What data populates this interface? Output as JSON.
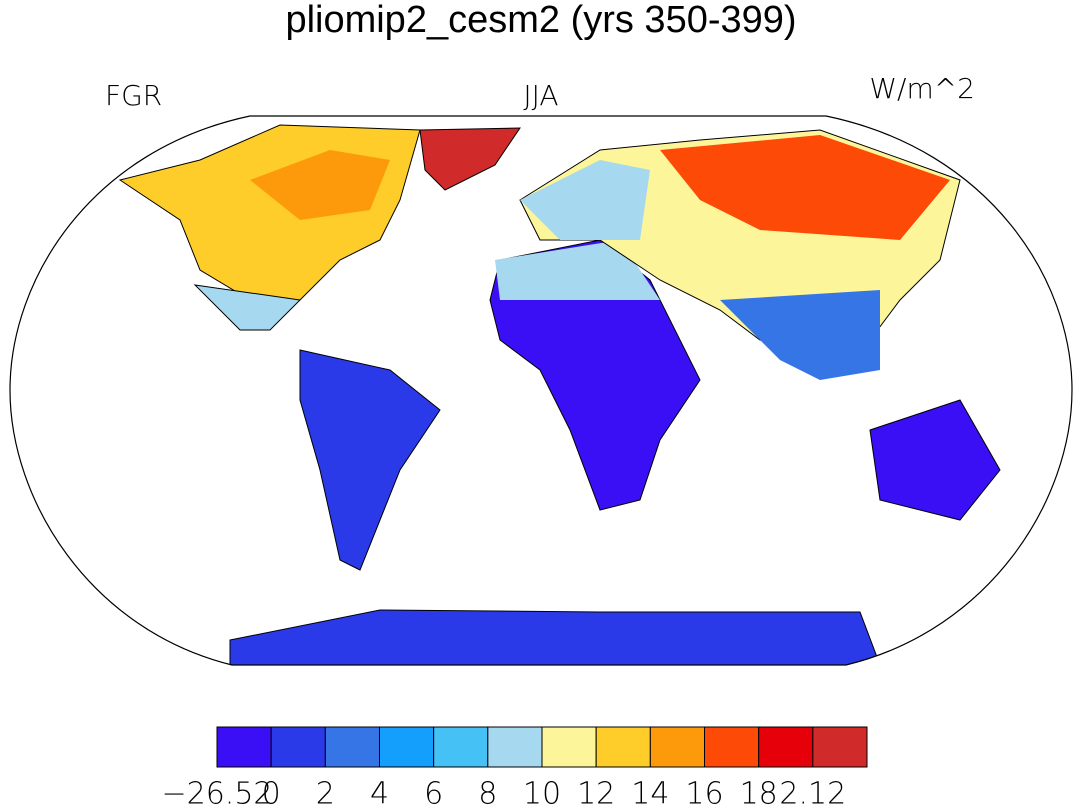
{
  "map": {
    "title": "pliomip2_cesm2 (yrs 350-399)",
    "left_label": "FGR",
    "center_label": "JJA",
    "right_label": "W/m^2",
    "colorbar": {
      "colors": [
        "#3a0ff5",
        "#2a3ae8",
        "#3575e6",
        "#149ffc",
        "#45c1f5",
        "#a6d8f0",
        "#fdf59a",
        "#fecd2a",
        "#fd9a0c",
        "#fd4a06",
        "#e6000a",
        "#d12a2a"
      ],
      "ticks": [
        {
          "value": -26.52,
          "label": "−26.52"
        },
        0,
        2,
        4,
        6,
        8,
        10,
        12,
        14,
        16,
        18,
        2.12
      ]
    }
  }
}
